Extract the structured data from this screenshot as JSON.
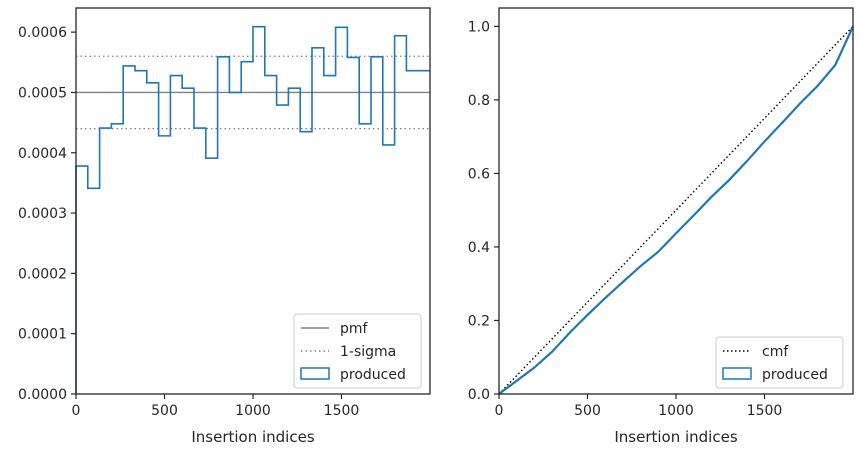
{
  "chart_data": [
    {
      "type": "step-histogram",
      "xlabel": "Insertion indices",
      "ylabel": "",
      "xlim": [
        0,
        2000
      ],
      "ylim": [
        0,
        0.00064
      ],
      "x_ticks": [
        0,
        500,
        1000,
        1500
      ],
      "y_ticks": [
        0.0,
        0.0001,
        0.0002,
        0.0003,
        0.0004,
        0.0005,
        0.0006
      ],
      "x_tick_labels": [
        "0",
        "500",
        "1000",
        "1500"
      ],
      "y_tick_labels": [
        "0.0000",
        "0.0001",
        "0.0002",
        "0.0003",
        "0.0004",
        "0.0005",
        "0.0006"
      ],
      "bin_width": 66.67,
      "series": [
        {
          "name": "produced",
          "values": [
            0.000378,
            0.000341,
            0.000441,
            0.000448,
            0.000544,
            0.000536,
            0.000516,
            0.000428,
            0.000528,
            0.000507,
            0.000441,
            0.000391,
            0.000559,
            0.0005,
            0.000551,
            0.000609,
            0.000528,
            0.000479,
            0.000507,
            0.000435,
            0.000574,
            0.000528,
            0.000608,
            0.000558,
            0.000448,
            0.000559,
            0.000413,
            0.000594,
            0.000536,
            0.000536
          ],
          "color": "#1f77b4"
        }
      ],
      "reference_lines": [
        {
          "name": "pmf",
          "value": 0.0005,
          "style": "solid",
          "color": "#808080"
        },
        {
          "name": "1-sigma",
          "values": [
            0.00044,
            0.00056
          ],
          "style": "dotted",
          "color": "#808080"
        }
      ],
      "legend": {
        "placement": "lower right",
        "entries": [
          "pmf",
          "1-sigma",
          "produced"
        ]
      },
      "grid": false
    },
    {
      "type": "line",
      "xlabel": "Insertion indices",
      "ylabel": "",
      "xlim": [
        0,
        2000
      ],
      "ylim": [
        0,
        1.05
      ],
      "x_ticks": [
        0,
        500,
        1000,
        1500
      ],
      "y_ticks": [
        0.0,
        0.2,
        0.4,
        0.6,
        0.8,
        1.0
      ],
      "x_tick_labels": [
        "0",
        "500",
        "1000",
        "1500"
      ],
      "y_tick_labels": [
        "0.0",
        "0.2",
        "0.4",
        "0.6",
        "0.8",
        "1.0"
      ],
      "series": [
        {
          "name": "cmf",
          "x": [
            0,
            2000
          ],
          "y": [
            0,
            1.0
          ],
          "style": "dotted",
          "color": "#000000"
        },
        {
          "name": "produced",
          "x": [
            0,
            100,
            200,
            300,
            400,
            500,
            600,
            700,
            800,
            900,
            1000,
            1100,
            1200,
            1300,
            1400,
            1500,
            1600,
            1700,
            1800,
            1900,
            2000
          ],
          "y": [
            0,
            0.036,
            0.072,
            0.115,
            0.167,
            0.215,
            0.261,
            0.305,
            0.348,
            0.387,
            0.437,
            0.486,
            0.536,
            0.582,
            0.633,
            0.687,
            0.738,
            0.79,
            0.838,
            0.895,
            1.0
          ],
          "style": "solid",
          "color": "#1f77b4"
        }
      ],
      "legend": {
        "placement": "lower right",
        "entries": [
          "cmf",
          "produced"
        ]
      },
      "grid": false
    }
  ]
}
